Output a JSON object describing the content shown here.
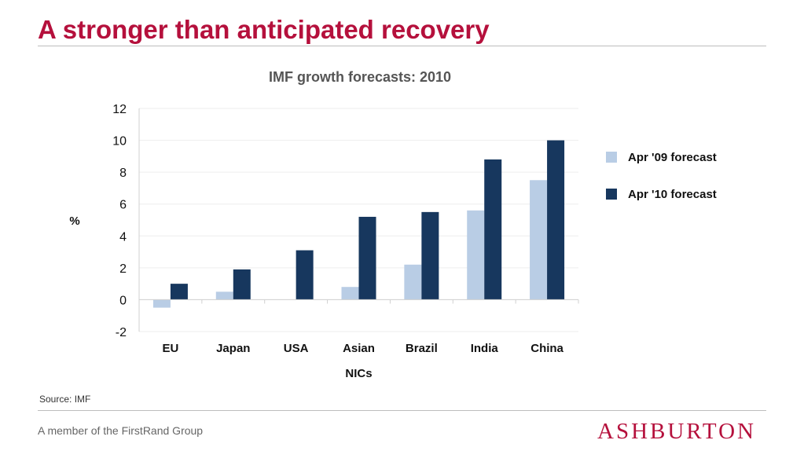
{
  "slide": {
    "title": "A stronger than anticipated recovery",
    "source": "Source: IMF",
    "footer": "A member of the FirstRand Group",
    "logo_text": "ASHBURTON"
  },
  "colors": {
    "title": "#b5103c",
    "series_apr09": "#b9cde5",
    "series_apr10": "#17375e",
    "logo": "#b5103c"
  },
  "chart_data": {
    "type": "bar",
    "title": "IMF growth forecasts: 2010",
    "ylabel": "%",
    "xlabel": "",
    "categories": [
      "EU",
      "Japan",
      "USA",
      "Asian",
      "Brazil",
      "India",
      "China"
    ],
    "category_sublabels": [
      "",
      "",
      "",
      "NICs",
      "",
      "",
      ""
    ],
    "series": [
      {
        "name": "Apr '09 forecast",
        "color": "#b9cde5",
        "values": [
          -0.5,
          0.5,
          0.0,
          0.8,
          2.2,
          5.6,
          7.5
        ]
      },
      {
        "name": "Apr '10 forecast",
        "color": "#17375e",
        "values": [
          1.0,
          1.9,
          3.1,
          5.2,
          5.5,
          8.8,
          10.0
        ]
      }
    ],
    "ylim": [
      -2,
      12
    ],
    "yticks": [
      -2,
      0,
      2,
      4,
      6,
      8,
      10,
      12
    ],
    "grid": true,
    "legend_position": "right"
  }
}
